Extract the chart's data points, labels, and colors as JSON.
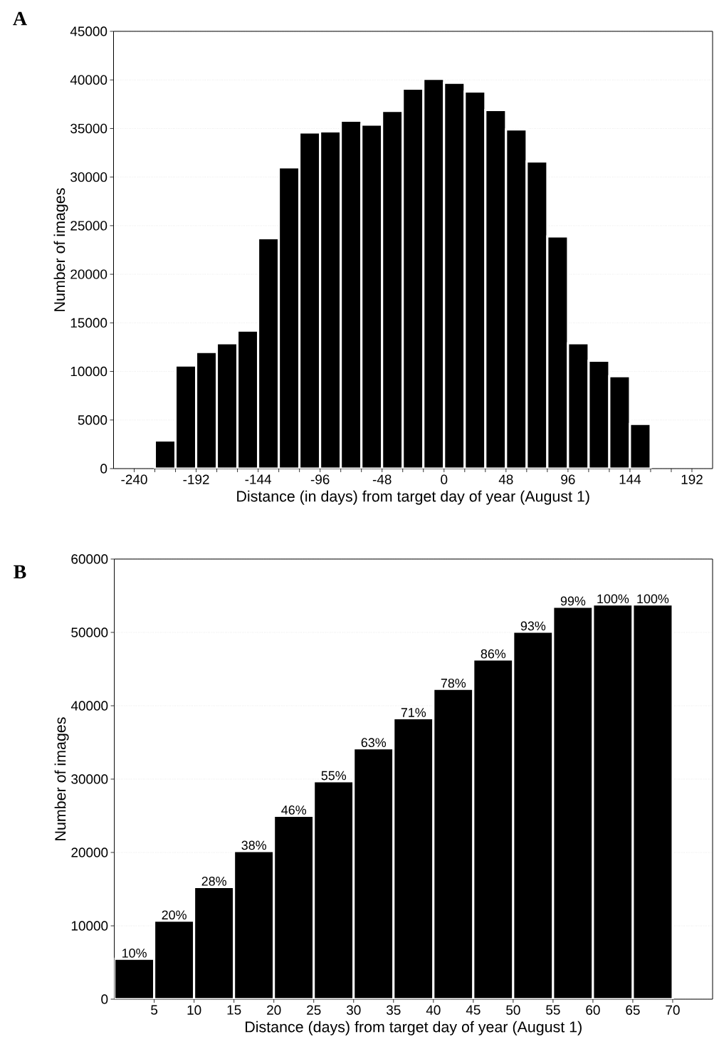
{
  "chart_data": [
    {
      "type": "histogram",
      "title": "A",
      "xlabel": "Distance (in days) from target day of year (August 1)",
      "ylabel": "Number of images",
      "color": "#000000",
      "bins": [
        -224,
        -208,
        -192,
        -176,
        -160,
        -144,
        -128,
        -112,
        -96,
        -80,
        -64,
        -48,
        -32,
        -16,
        0,
        16,
        32,
        48,
        64,
        80,
        96,
        112,
        128,
        144,
        160
      ],
      "values": [
        2900,
        10600,
        12000,
        12900,
        14200,
        23700,
        31000,
        34600,
        34700,
        35800,
        35400,
        36800,
        39100,
        40100,
        39700,
        38800,
        36900,
        34900,
        31600,
        23900,
        12900,
        11100,
        9500,
        4600
      ],
      "xlim": [
        -256,
        208
      ],
      "ylim": [
        0,
        45000
      ],
      "xticks": [
        -240,
        {
          "value": -224,
          "label": null
        },
        {
          "value": -208,
          "label": null
        },
        -192,
        {
          "value": -176,
          "label": null
        },
        {
          "value": -160,
          "label": null
        },
        -144,
        {
          "value": -128,
          "label": null
        },
        {
          "value": -112,
          "label": null
        },
        -96,
        {
          "value": -80,
          "label": null
        },
        {
          "value": -64,
          "label": null
        },
        -48,
        {
          "value": -32,
          "label": null
        },
        {
          "value": -16,
          "label": null
        },
        0,
        {
          "value": 16,
          "label": null
        },
        {
          "value": 32,
          "label": null
        },
        48,
        {
          "value": 64,
          "label": null
        },
        {
          "value": 80,
          "label": null
        },
        96,
        {
          "value": 112,
          "label": null
        },
        {
          "value": 128,
          "label": null
        },
        144,
        {
          "value": 160,
          "label": null
        },
        {
          "value": 176,
          "label": null
        },
        192
      ],
      "yticks": [
        0,
        5000,
        10000,
        15000,
        20000,
        25000,
        30000,
        35000,
        40000,
        45000
      ],
      "grid": "y"
    },
    {
      "type": "histogram",
      "title": "B",
      "xlabel": "Distance (days) from target day of year (August 1)",
      "ylabel": "Number of images",
      "color": "#000000",
      "bins": [
        0,
        5,
        10,
        15,
        20,
        25,
        30,
        35,
        40,
        45,
        50,
        55,
        60,
        65,
        70
      ],
      "values": [
        5500,
        10700,
        15300,
        20200,
        25000,
        29700,
        34200,
        38300,
        42300,
        46300,
        50100,
        53500,
        53800,
        53800
      ],
      "annotations": [
        {
          "text": "10%",
          "x": 2.5,
          "y": 5500
        },
        {
          "text": "20%",
          "x": 7.5,
          "y": 10700
        },
        {
          "text": "28%",
          "x": 12.5,
          "y": 15300
        },
        {
          "text": "38%",
          "x": 17.5,
          "y": 20200
        },
        {
          "text": "46%",
          "x": 22.5,
          "y": 25000
        },
        {
          "text": "55%",
          "x": 27.5,
          "y": 29700
        },
        {
          "text": "63%",
          "x": 32.5,
          "y": 34200
        },
        {
          "text": "71%",
          "x": 37.5,
          "y": 38300
        },
        {
          "text": "78%",
          "x": 42.5,
          "y": 42300
        },
        {
          "text": "86%",
          "x": 47.5,
          "y": 46300
        },
        {
          "text": "93%",
          "x": 52.5,
          "y": 50100
        },
        {
          "text": "99%",
          "x": 57.5,
          "y": 53500
        },
        {
          "text": "100%",
          "x": 62.5,
          "y": 53800
        },
        {
          "text": "100%",
          "x": 67.5,
          "y": 53800
        }
      ],
      "xlim": [
        0,
        75
      ],
      "ylim": [
        0,
        60000
      ],
      "xticks": [
        5,
        10,
        15,
        20,
        25,
        30,
        35,
        40,
        45,
        50,
        55,
        60,
        65,
        70
      ],
      "yticks": [
        0,
        10000,
        20000,
        30000,
        40000,
        50000,
        60000
      ],
      "grid": "y"
    }
  ]
}
